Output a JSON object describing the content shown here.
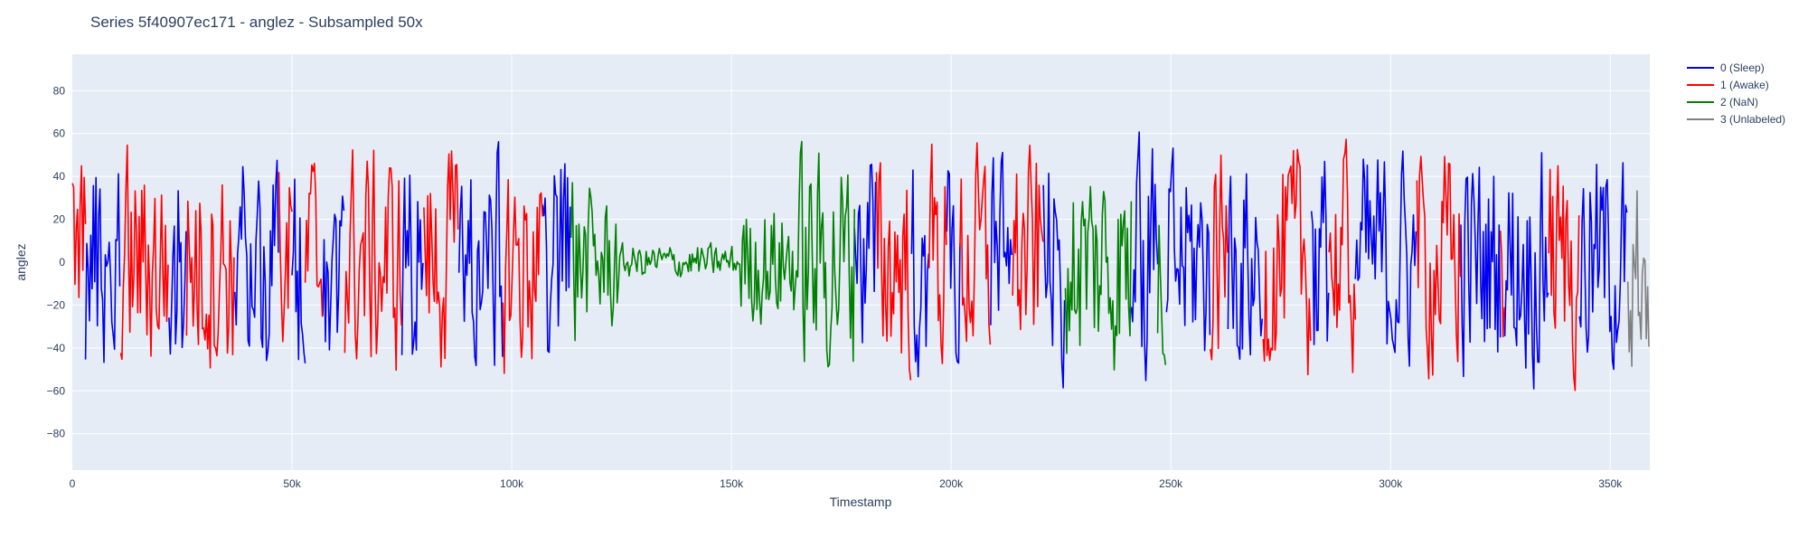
{
  "chart_data": {
    "type": "line",
    "title": "Series 5f40907ec171 - anglez - Subsampled 50x",
    "xlabel": "Timestamp",
    "ylabel": "anglez",
    "xlim": [
      0,
      359000
    ],
    "ylim": [
      -97,
      97
    ],
    "grid": true,
    "legend_position": "right",
    "x_ticks": [
      {
        "value": 0,
        "label": "0"
      },
      {
        "value": 50000,
        "label": "50k"
      },
      {
        "value": 100000,
        "label": "100k"
      },
      {
        "value": 150000,
        "label": "150k"
      },
      {
        "value": 200000,
        "label": "200k"
      },
      {
        "value": 250000,
        "label": "250k"
      },
      {
        "value": 300000,
        "label": "300k"
      },
      {
        "value": 350000,
        "label": "350k"
      }
    ],
    "y_ticks": [
      {
        "value": 80,
        "label": "80"
      },
      {
        "value": 60,
        "label": "60"
      },
      {
        "value": 40,
        "label": "40"
      },
      {
        "value": 20,
        "label": "20"
      },
      {
        "value": 0,
        "label": "0"
      },
      {
        "value": -20,
        "label": "−20"
      },
      {
        "value": -40,
        "label": "−40"
      },
      {
        "value": -60,
        "label": "−60"
      },
      {
        "value": -80,
        "label": "−80"
      }
    ],
    "series": [
      {
        "name": "0 (Sleep)",
        "color": "#0000ee",
        "segments": [
          [
            3000,
            11000
          ],
          [
            22000,
            26000
          ],
          [
            37000,
            47000
          ],
          [
            50000,
            53000
          ],
          [
            57000,
            62000
          ],
          [
            75000,
            80000
          ],
          [
            88000,
            98000
          ],
          [
            107000,
            113500
          ],
          [
            178000,
            183000
          ],
          [
            191000,
            195000
          ],
          [
            199000,
            202000
          ],
          [
            209000,
            214000
          ],
          [
            221000,
            226000
          ],
          [
            241000,
            247000
          ],
          [
            249000,
            259000
          ],
          [
            263000,
            271000
          ],
          [
            282000,
            286000
          ],
          [
            292000,
            306000
          ],
          [
            316000,
            325000
          ],
          [
            326000,
            336000
          ],
          [
            343000,
            354000
          ]
        ]
      },
      {
        "name": "1 (Awake)",
        "color": "#ff0000",
        "segments": [
          [
            0,
            3000
          ],
          [
            11000,
            22000
          ],
          [
            26000,
            37000
          ],
          [
            47000,
            50000
          ],
          [
            53000,
            57000
          ],
          [
            62000,
            75000
          ],
          [
            80000,
            88000
          ],
          [
            98000,
            107000
          ],
          [
            183000,
            191000
          ],
          [
            195000,
            199000
          ],
          [
            202000,
            209000
          ],
          [
            214000,
            221000
          ],
          [
            259000,
            263000
          ],
          [
            271000,
            282000
          ],
          [
            286000,
            292000
          ],
          [
            306000,
            316000
          ],
          [
            325000,
            326000
          ],
          [
            336000,
            343000
          ]
        ]
      },
      {
        "name": "2 (NaN)",
        "color": "#008000",
        "segments": [
          [
            113500,
            178000
          ],
          [
            226000,
            241000
          ],
          [
            247000,
            249000
          ]
        ]
      },
      {
        "name": "3 (Unlabeled)",
        "color": "#808080",
        "segments": [
          [
            354000,
            359000
          ]
        ]
      }
    ]
  }
}
